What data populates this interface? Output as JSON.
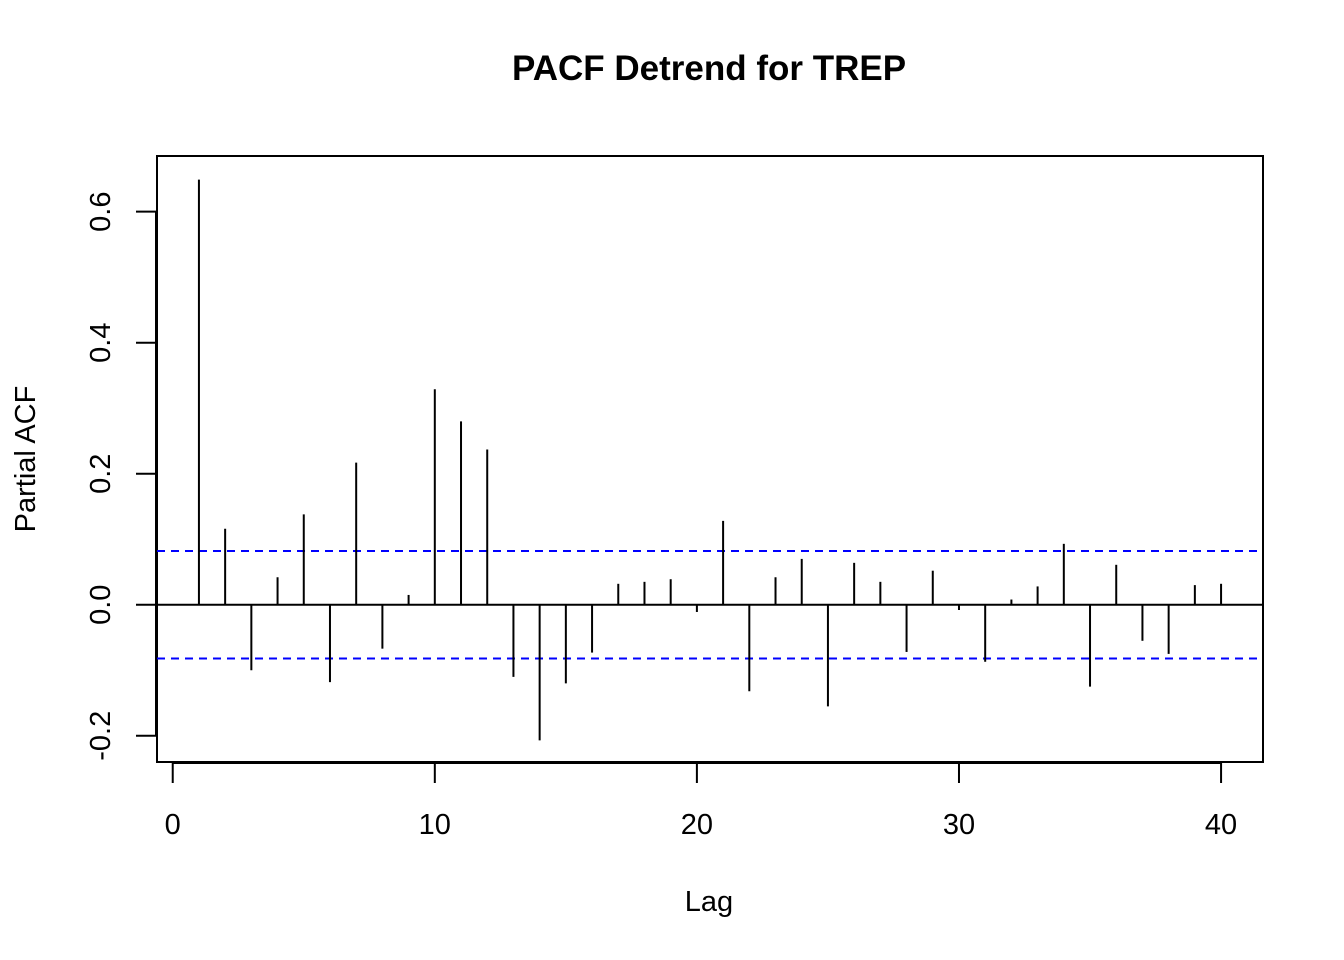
{
  "chart_data": {
    "type": "bar",
    "title": "PACF Detrend for TREP",
    "xlabel": "Lag",
    "ylabel": "Partial ACF",
    "xlim": [
      -0.6,
      41.6
    ],
    "ylim": [
      -0.24,
      0.685
    ],
    "x_ticks": [
      0,
      10,
      20,
      30,
      40
    ],
    "y_ticks": [
      -0.2,
      0.0,
      0.2,
      0.4,
      0.6
    ],
    "x_tick_labels": [
      "0",
      "10",
      "20",
      "30",
      "40"
    ],
    "y_tick_labels": [
      "-0.2",
      "0.0",
      "0.2",
      "0.4",
      "0.6"
    ],
    "confidence_bound": 0.082,
    "grid": false,
    "colors": {
      "spike": "#000000",
      "ci": "#0000ff",
      "zero_line": "#000000"
    },
    "lags": [
      1,
      2,
      3,
      4,
      5,
      6,
      7,
      8,
      9,
      10,
      11,
      12,
      13,
      14,
      15,
      16,
      17,
      18,
      19,
      20,
      21,
      22,
      23,
      24,
      25,
      26,
      27,
      28,
      29,
      30,
      31,
      32,
      33,
      34,
      35,
      36,
      37,
      38,
      39,
      40
    ],
    "values": [
      0.649,
      0.116,
      -0.1,
      0.042,
      0.138,
      -0.118,
      0.217,
      -0.067,
      0.015,
      0.329,
      0.28,
      0.237,
      -0.11,
      -0.207,
      -0.12,
      -0.073,
      0.032,
      0.035,
      0.039,
      -0.011,
      0.128,
      -0.132,
      0.042,
      0.07,
      -0.155,
      0.064,
      0.035,
      -0.072,
      0.052,
      -0.008,
      -0.087,
      0.008,
      0.028,
      0.093,
      -0.125,
      0.061,
      -0.055,
      -0.075,
      0.03,
      0.032
    ]
  }
}
